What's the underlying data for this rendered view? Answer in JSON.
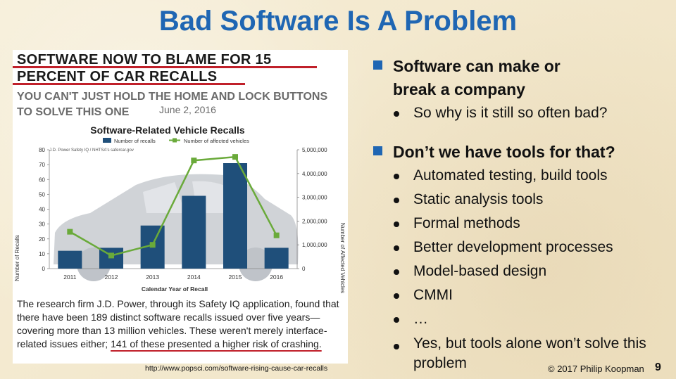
{
  "title": "Bad Software Is A Problem",
  "article": {
    "headline_line1": "SOFTWARE NOW TO BLAME FOR 15",
    "headline_line2": "PERCENT OF CAR RECALLS",
    "subhead_line1": "YOU CAN'T JUST HOLD THE HOME AND LOCK BUTTONS",
    "subhead_line2": "TO SOLVE THIS ONE",
    "date": "June 2, 2016",
    "paragraph_main": "The research firm J.D. Power, through its Safety IQ application, found that there have been 189 distinct software recalls issued over five years—covering more than 13 million vehicles. These weren't merely interface-related issues either; ",
    "paragraph_highlight": "141 of these presented a higher risk of crashing.",
    "source_url": "http://www.popsci.com/software-rising-cause-car-recalls"
  },
  "chart_data": {
    "type": "bar",
    "title": "Software-Related Vehicle Recalls",
    "source_note": "J.D. Power Safety IQ / NHTSA's safercar.gov",
    "categories": [
      "2011",
      "2012",
      "2013",
      "2014",
      "2015",
      "2016"
    ],
    "xlabel": "Calendar Year of Recall",
    "ylabel": "Number of Recalls",
    "y2label": "Number of Affected Vehicles",
    "ylim": [
      0,
      80
    ],
    "y2lim": [
      0,
      5000000
    ],
    "yticks": [
      "0",
      "10",
      "20",
      "30",
      "40",
      "50",
      "60",
      "70",
      "80"
    ],
    "y2ticks": [
      "0",
      "1,000,000",
      "2,000,000",
      "3,000,000",
      "4,000,000",
      "5,000,000"
    ],
    "series": [
      {
        "name": "Number of recalls",
        "type": "bar",
        "axis": "left",
        "color": "#1f4f7a",
        "values": [
          12,
          14,
          29,
          49,
          71,
          14
        ]
      },
      {
        "name": "Number of affected vehicles",
        "type": "line",
        "axis": "right",
        "color": "#6aaa3a",
        "values": [
          1550000,
          550000,
          1000000,
          4550000,
          4700000,
          1400000
        ]
      }
    ],
    "legend_position": "top-center",
    "grid": false
  },
  "bullets": [
    {
      "level": 1,
      "text": "Software can make or break a company"
    },
    {
      "level": 2,
      "text": "So why is it still so often bad?"
    },
    {
      "level": 1,
      "text": "Don’t we have tools for that?"
    },
    {
      "level": 2,
      "text": "Automated testing, build tools"
    },
    {
      "level": 2,
      "text": "Static analysis tools"
    },
    {
      "level": 2,
      "text": "Formal methods"
    },
    {
      "level": 2,
      "text": "Better development processes"
    },
    {
      "level": 2,
      "text": "Model-based design"
    },
    {
      "level": 2,
      "text": "CMMI"
    },
    {
      "level": 2,
      "text": "…"
    },
    {
      "level": 2,
      "text": "Yes, but tools alone won’t solve this problem"
    }
  ],
  "footer": {
    "copyright": "© 2017 Philip Koopman",
    "page_number": "9"
  },
  "colors": {
    "title": "#1f66b3",
    "bullet_square": "#1f66b3",
    "underline": "#c0202a"
  }
}
